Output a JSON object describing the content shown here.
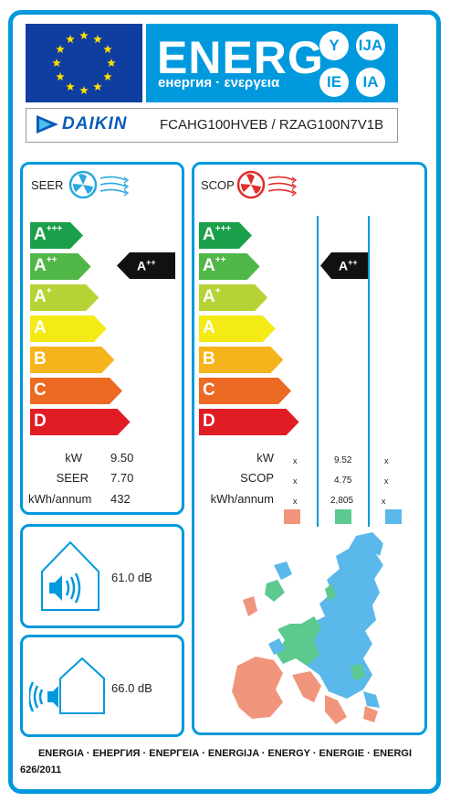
{
  "header": {
    "energ_title": "ENERG",
    "energ_subtitle": "енергия · ενεργεια",
    "badges": [
      "Y",
      "IJA",
      "IE",
      "IA"
    ]
  },
  "brand": {
    "name": "DAIKIN"
  },
  "model": "FCAHG100HVEB / RZAG100N7V1B",
  "cooling": {
    "title": "SEER",
    "classes": [
      "A+++",
      "A++",
      "A+",
      "A",
      "B",
      "C",
      "D"
    ],
    "rating": "A++",
    "rows": [
      {
        "label": "kW",
        "value": "9.50"
      },
      {
        "label": "SEER",
        "value": "7.70"
      },
      {
        "label": "kWh/annum",
        "value": "432"
      }
    ]
  },
  "heating": {
    "title": "SCOP",
    "classes": [
      "A+++",
      "A++",
      "A+",
      "A",
      "B",
      "C",
      "D"
    ],
    "rating": "A++",
    "row_labels": [
      "kW",
      "SCOP",
      "kWh/annum"
    ],
    "columns": [
      {
        "zone_color": "#f0957b",
        "values": [
          "x",
          "x",
          "x"
        ]
      },
      {
        "zone_color": "#5cc98f",
        "values": [
          "9.52",
          "4.75",
          "2,805"
        ]
      },
      {
        "zone_color": "#5ab8ea",
        "values": [
          "x",
          "x",
          "x"
        ]
      }
    ]
  },
  "noise": {
    "indoor": "61.0 dB",
    "outdoor": "66.0 dB"
  },
  "footer": {
    "languages": "ENERGIA · ЕНЕРГИЯ · ΕΝΕΡΓΕΙΑ · ENERGIJA · ENERGY · ENERGIE · ENERGI",
    "regulation": "626/2011"
  },
  "colors": {
    "frame": "#0099dd",
    "eu_blue": "#0f3ea0",
    "class_colors": [
      "#1aa04a",
      "#51b748",
      "#b5d334",
      "#f3ea16",
      "#f5b41b",
      "#ec6a21",
      "#e01c24"
    ]
  }
}
